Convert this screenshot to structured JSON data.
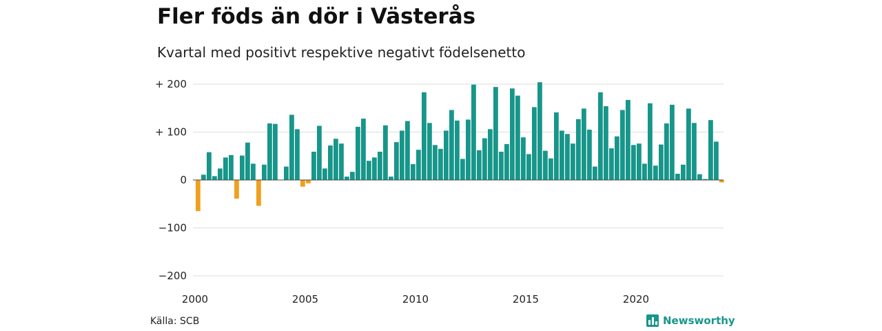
{
  "title": "Fler föds än dör i Västerås",
  "subtitle": "Kvartal med positivt respektive negativt födelsenetto",
  "source": "Källa: SCB",
  "brand": "Newsworthy",
  "colors": {
    "positive": "#17968a",
    "negative": "#f0a01e",
    "grid": "#dddddd"
  },
  "chart_data": {
    "type": "bar",
    "y_ticks": [
      {
        "value": 200,
        "label": "+ 200"
      },
      {
        "value": 100,
        "label": "+ 100"
      },
      {
        "value": 0,
        "label": "0"
      },
      {
        "value": -100,
        "label": "−100"
      },
      {
        "value": -200,
        "label": "−200"
      }
    ],
    "x_ticks": [
      "2000",
      "2005",
      "2010",
      "2015",
      "2020"
    ],
    "ylim": [
      -200,
      200
    ],
    "x_start": 2000,
    "grid": true,
    "quarters_values": [
      -65,
      11,
      58,
      8,
      24,
      47,
      52,
      -39,
      51,
      78,
      34,
      -54,
      32,
      118,
      117,
      0,
      28,
      136,
      106,
      -14,
      -7,
      59,
      113,
      24,
      72,
      86,
      76,
      7,
      17,
      111,
      128,
      40,
      47,
      59,
      114,
      7,
      79,
      103,
      123,
      33,
      63,
      183,
      119,
      73,
      65,
      103,
      146,
      124,
      44,
      126,
      199,
      62,
      87,
      106,
      194,
      59,
      75,
      191,
      176,
      89,
      54,
      152,
      204,
      61,
      45,
      141,
      103,
      96,
      76,
      127,
      149,
      105,
      28,
      183,
      154,
      66,
      91,
      146,
      167,
      73,
      76,
      34,
      160,
      30,
      74,
      118,
      157,
      13,
      32,
      149,
      119,
      12,
      2,
      125,
      80,
      -5
    ]
  }
}
